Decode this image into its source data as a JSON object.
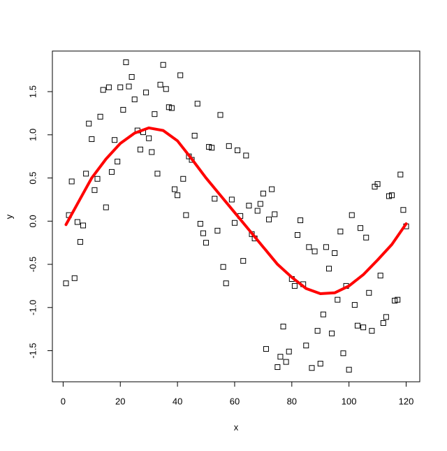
{
  "chart_data": {
    "type": "scatter",
    "x_label": "x",
    "y_label": "y",
    "xlim": [
      -3.76,
      124.76
    ],
    "ylim": [
      -1.86,
      1.97
    ],
    "xticks": [
      0,
      20,
      40,
      60,
      80,
      100,
      120
    ],
    "yticks": [
      -1.5,
      {
        "value": -1,
        "label": "-1.0"
      },
      -0.5,
      {
        "value": 0,
        "label": "0.0"
      },
      0.5,
      {
        "value": 1,
        "label": "1.0"
      },
      1.5
    ],
    "grid": false,
    "series": [
      {
        "type": "scatter",
        "color": "#000000",
        "x": [
          1,
          2,
          3,
          4,
          5,
          6,
          7,
          8,
          9,
          10,
          11,
          12,
          13,
          14,
          15,
          16,
          17,
          18,
          19,
          20,
          21,
          22,
          23,
          24,
          25,
          26,
          27,
          28,
          29,
          30,
          31,
          32,
          33,
          34,
          35,
          36,
          37,
          38,
          39,
          40,
          41,
          42,
          43,
          44,
          45,
          46,
          47,
          48,
          49,
          50,
          51,
          52,
          53,
          54,
          55,
          56,
          57,
          58,
          59,
          60,
          61,
          62,
          63,
          64,
          65,
          66,
          67,
          68,
          69,
          70,
          71,
          72,
          73,
          74,
          75,
          76,
          77,
          78,
          79,
          80,
          81,
          82,
          83,
          84,
          85,
          86,
          87,
          88,
          89,
          90,
          91,
          92,
          93,
          94,
          95,
          96,
          97,
          98,
          99,
          100,
          101,
          102,
          103,
          104,
          105,
          106,
          107,
          108,
          109,
          110,
          111,
          112,
          113,
          114,
          115,
          116,
          117,
          118,
          119,
          120
        ],
        "values": [
          -0.72,
          0.07,
          0.46,
          -0.66,
          -0.01,
          -0.24,
          -0.05,
          0.55,
          1.13,
          0.95,
          0.36,
          0.49,
          1.21,
          1.52,
          0.16,
          1.55,
          0.57,
          0.94,
          0.69,
          1.55,
          1.29,
          1.84,
          1.56,
          1.67,
          1.41,
          1.05,
          0.83,
          1.03,
          1.49,
          0.96,
          0.8,
          1.24,
          0.55,
          1.58,
          1.81,
          1.53,
          1.32,
          1.31,
          0.37,
          0.3,
          1.69,
          0.49,
          0.07,
          0.75,
          0.71,
          0.99,
          1.36,
          -0.03,
          -0.14,
          -0.25,
          0.86,
          0.85,
          0.26,
          -0.11,
          1.23,
          -0.53,
          -0.72,
          0.87,
          0.25,
          -0.02,
          0.82,
          0.06,
          -0.46,
          0.76,
          0.18,
          -0.15,
          -0.2,
          0.12,
          0.2,
          0.32,
          -1.48,
          0.02,
          0.37,
          0.08,
          -1.69,
          -1.57,
          -1.22,
          -1.63,
          -1.51,
          -0.67,
          -0.75,
          -0.16,
          0.01,
          -0.73,
          -1.44,
          -0.3,
          -1.7,
          -0.35,
          -1.27,
          -1.65,
          -1.08,
          -0.3,
          -0.55,
          -1.3,
          -0.37,
          -0.91,
          -0.12,
          -1.53,
          -0.75,
          -1.72,
          0.07,
          -0.97,
          -1.21,
          -0.08,
          -1.23,
          -0.19,
          -0.83,
          -1.27,
          0.4,
          0.43,
          -0.63,
          -1.18,
          -1.11,
          0.29,
          0.3,
          -0.92,
          -0.91,
          0.54,
          0.13,
          -0.06
        ]
      },
      {
        "type": "line",
        "color": "#ff0000",
        "x": [
          1,
          5,
          10,
          15,
          20,
          25,
          30,
          35,
          40,
          45,
          50,
          55,
          60,
          65,
          70,
          75,
          80,
          85,
          90,
          95,
          100,
          105,
          110,
          115,
          120
        ],
        "values": [
          -0.04,
          0.2,
          0.5,
          0.72,
          0.9,
          1.02,
          1.08,
          1.05,
          0.93,
          0.72,
          0.5,
          0.3,
          0.1,
          -0.1,
          -0.3,
          -0.5,
          -0.65,
          -0.78,
          -0.84,
          -0.83,
          -0.75,
          -0.62,
          -0.45,
          -0.27,
          -0.03
        ]
      }
    ]
  }
}
